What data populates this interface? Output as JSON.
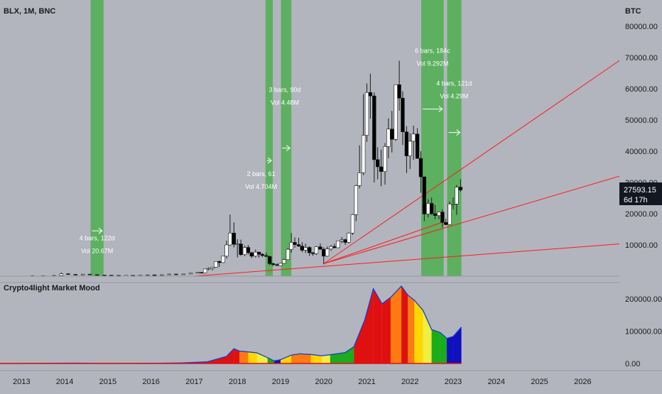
{
  "header": {
    "symbol": "BLX, 1M, BNC"
  },
  "indicator": {
    "title": "Crypto4light Market Mood"
  },
  "chart_data": [
    {
      "type": "candlestick",
      "currency": "BTC",
      "ylim": [
        0,
        80000
      ],
      "y_ticks": [
        "80000.00",
        "70000.00",
        "60000.00",
        "50000.00",
        "40000.00",
        "30000.00",
        "20000.00",
        "10000.00"
      ],
      "y_tick_values": [
        80000,
        70000,
        60000,
        50000,
        40000,
        30000,
        20000,
        10000
      ],
      "x_labels": [
        "2013",
        "2014",
        "2015",
        "2016",
        "2017",
        "2018",
        "2019",
        "2020",
        "2021",
        "2022",
        "2023",
        "2024",
        "2025",
        "2026"
      ],
      "x_start": 2012.5,
      "x_end": 2026.85,
      "price_badge": {
        "price": "27593.15",
        "countdown": "6d 17h",
        "value": 27593.15
      },
      "candles": [
        {
          "t": 2013.0,
          "o": 13,
          "h": 22,
          "l": 12,
          "c": 20
        },
        {
          "t": 2013.25,
          "o": 20,
          "h": 260,
          "l": 18,
          "c": 130
        },
        {
          "t": 2013.5,
          "o": 130,
          "h": 140,
          "l": 65,
          "c": 100
        },
        {
          "t": 2013.75,
          "o": 100,
          "h": 400,
          "l": 95,
          "c": 200
        },
        {
          "t": 2013.92,
          "o": 200,
          "h": 1150,
          "l": 190,
          "c": 750
        },
        {
          "t": 2014.08,
          "o": 750,
          "h": 960,
          "l": 420,
          "c": 570
        },
        {
          "t": 2014.25,
          "o": 570,
          "h": 680,
          "l": 340,
          "c": 450
        },
        {
          "t": 2014.42,
          "o": 450,
          "h": 660,
          "l": 430,
          "c": 640
        },
        {
          "t": 2014.58,
          "o": 640,
          "h": 650,
          "l": 450,
          "c": 480
        },
        {
          "t": 2014.75,
          "o": 480,
          "h": 490,
          "l": 280,
          "c": 340
        },
        {
          "t": 2014.92,
          "o": 340,
          "h": 400,
          "l": 300,
          "c": 320
        },
        {
          "t": 2015.08,
          "o": 320,
          "h": 330,
          "l": 170,
          "c": 250
        },
        {
          "t": 2015.25,
          "o": 250,
          "h": 300,
          "l": 210,
          "c": 235
        },
        {
          "t": 2015.42,
          "o": 235,
          "h": 300,
          "l": 220,
          "c": 260
        },
        {
          "t": 2015.58,
          "o": 260,
          "h": 320,
          "l": 210,
          "c": 230
        },
        {
          "t": 2015.75,
          "o": 230,
          "h": 330,
          "l": 225,
          "c": 310
        },
        {
          "t": 2015.92,
          "o": 310,
          "h": 500,
          "l": 300,
          "c": 430
        },
        {
          "t": 2016.08,
          "o": 430,
          "h": 440,
          "l": 360,
          "c": 420
        },
        {
          "t": 2016.25,
          "o": 420,
          "h": 470,
          "l": 400,
          "c": 450
        },
        {
          "t": 2016.42,
          "o": 450,
          "h": 780,
          "l": 440,
          "c": 670
        },
        {
          "t": 2016.58,
          "o": 670,
          "h": 680,
          "l": 520,
          "c": 610
        },
        {
          "t": 2016.75,
          "o": 610,
          "h": 740,
          "l": 600,
          "c": 700
        },
        {
          "t": 2016.92,
          "o": 700,
          "h": 980,
          "l": 690,
          "c": 960
        },
        {
          "t": 2017.08,
          "o": 960,
          "h": 1290,
          "l": 890,
          "c": 1190
        },
        {
          "t": 2017.17,
          "o": 1190,
          "h": 1350,
          "l": 890,
          "c": 1080
        },
        {
          "t": 2017.25,
          "o": 1080,
          "h": 2000,
          "l": 1050,
          "c": 2300
        },
        {
          "t": 2017.33,
          "o": 2300,
          "h": 2800,
          "l": 1900,
          "c": 2480
        },
        {
          "t": 2017.42,
          "o": 2480,
          "h": 2980,
          "l": 1850,
          "c": 2870
        },
        {
          "t": 2017.5,
          "o": 2870,
          "h": 4800,
          "l": 2700,
          "c": 4700
        },
        {
          "t": 2017.58,
          "o": 4700,
          "h": 4980,
          "l": 2970,
          "c": 4340
        },
        {
          "t": 2017.67,
          "o": 4340,
          "h": 6400,
          "l": 4200,
          "c": 6400
        },
        {
          "t": 2017.75,
          "o": 6400,
          "h": 11400,
          "l": 5600,
          "c": 10000
        },
        {
          "t": 2017.83,
          "o": 10000,
          "h": 19700,
          "l": 9700,
          "c": 13800
        },
        {
          "t": 2017.92,
          "o": 13800,
          "h": 17200,
          "l": 9200,
          "c": 10200
        },
        {
          "t": 2018.0,
          "o": 10200,
          "h": 11800,
          "l": 6000,
          "c": 10300
        },
        {
          "t": 2018.08,
          "o": 10300,
          "h": 11700,
          "l": 6500,
          "c": 6900
        },
        {
          "t": 2018.17,
          "o": 6900,
          "h": 9700,
          "l": 6400,
          "c": 9200
        },
        {
          "t": 2018.25,
          "o": 9200,
          "h": 10000,
          "l": 7000,
          "c": 7500
        },
        {
          "t": 2018.33,
          "o": 7500,
          "h": 7800,
          "l": 5800,
          "c": 6400
        },
        {
          "t": 2018.42,
          "o": 6400,
          "h": 8500,
          "l": 6000,
          "c": 7700
        },
        {
          "t": 2018.5,
          "o": 7700,
          "h": 7800,
          "l": 5900,
          "c": 7000
        },
        {
          "t": 2018.58,
          "o": 7000,
          "h": 7400,
          "l": 6100,
          "c": 6600
        },
        {
          "t": 2018.67,
          "o": 6600,
          "h": 7600,
          "l": 6200,
          "c": 6300
        },
        {
          "t": 2018.75,
          "o": 6300,
          "h": 6600,
          "l": 3500,
          "c": 4000
        },
        {
          "t": 2018.83,
          "o": 4000,
          "h": 4300,
          "l": 3200,
          "c": 3700
        },
        {
          "t": 2018.92,
          "o": 3700,
          "h": 4100,
          "l": 3300,
          "c": 3400
        },
        {
          "t": 2019.0,
          "o": 3400,
          "h": 4200,
          "l": 3400,
          "c": 4100
        },
        {
          "t": 2019.08,
          "o": 4100,
          "h": 5500,
          "l": 4000,
          "c": 5300
        },
        {
          "t": 2019.17,
          "o": 5300,
          "h": 9000,
          "l": 5200,
          "c": 8600
        },
        {
          "t": 2019.25,
          "o": 8600,
          "h": 13800,
          "l": 7500,
          "c": 10800
        },
        {
          "t": 2019.33,
          "o": 10800,
          "h": 12400,
          "l": 9100,
          "c": 10100
        },
        {
          "t": 2019.42,
          "o": 10100,
          "h": 12300,
          "l": 9400,
          "c": 9600
        },
        {
          "t": 2019.5,
          "o": 9600,
          "h": 10900,
          "l": 7700,
          "c": 8300
        },
        {
          "t": 2019.58,
          "o": 8300,
          "h": 10400,
          "l": 7400,
          "c": 9200
        },
        {
          "t": 2019.67,
          "o": 9200,
          "h": 9600,
          "l": 6500,
          "c": 7500
        },
        {
          "t": 2019.75,
          "o": 7500,
          "h": 7700,
          "l": 6500,
          "c": 7200
        },
        {
          "t": 2019.83,
          "o": 7200,
          "h": 9600,
          "l": 6800,
          "c": 9400
        },
        {
          "t": 2019.92,
          "o": 9400,
          "h": 10500,
          "l": 8500,
          "c": 8600
        },
        {
          "t": 2020.0,
          "o": 8600,
          "h": 9200,
          "l": 3800,
          "c": 6400
        },
        {
          "t": 2020.08,
          "o": 6400,
          "h": 9500,
          "l": 6200,
          "c": 8700
        },
        {
          "t": 2020.17,
          "o": 8700,
          "h": 10000,
          "l": 8100,
          "c": 9500
        },
        {
          "t": 2020.25,
          "o": 9500,
          "h": 10400,
          "l": 8900,
          "c": 9100
        },
        {
          "t": 2020.33,
          "o": 9100,
          "h": 11400,
          "l": 9000,
          "c": 11300
        },
        {
          "t": 2020.42,
          "o": 11300,
          "h": 12500,
          "l": 10600,
          "c": 11700
        },
        {
          "t": 2020.5,
          "o": 11700,
          "h": 12000,
          "l": 10000,
          "c": 10800
        },
        {
          "t": 2020.58,
          "o": 10800,
          "h": 14000,
          "l": 10500,
          "c": 13800
        },
        {
          "t": 2020.67,
          "o": 13800,
          "h": 19900,
          "l": 13200,
          "c": 19700
        },
        {
          "t": 2020.75,
          "o": 19700,
          "h": 29300,
          "l": 17600,
          "c": 29000
        },
        {
          "t": 2020.83,
          "o": 29000,
          "h": 41900,
          "l": 28100,
          "c": 33100
        },
        {
          "t": 2020.92,
          "o": 33100,
          "h": 58300,
          "l": 32300,
          "c": 45100
        },
        {
          "t": 2021.0,
          "o": 45100,
          "h": 61700,
          "l": 43000,
          "c": 58800
        },
        {
          "t": 2021.08,
          "o": 58800,
          "h": 64800,
          "l": 50400,
          "c": 57700
        },
        {
          "t": 2021.17,
          "o": 57700,
          "h": 58800,
          "l": 30000,
          "c": 37300
        },
        {
          "t": 2021.25,
          "o": 37300,
          "h": 41300,
          "l": 31000,
          "c": 35000
        },
        {
          "t": 2021.33,
          "o": 35000,
          "h": 40500,
          "l": 28800,
          "c": 33500
        },
        {
          "t": 2021.42,
          "o": 33500,
          "h": 42600,
          "l": 29300,
          "c": 41500
        },
        {
          "t": 2021.5,
          "o": 41500,
          "h": 50500,
          "l": 37700,
          "c": 47100
        },
        {
          "t": 2021.58,
          "o": 47100,
          "h": 52900,
          "l": 39600,
          "c": 43800
        },
        {
          "t": 2021.67,
          "o": 43800,
          "h": 61000,
          "l": 43300,
          "c": 61300
        },
        {
          "t": 2021.75,
          "o": 61300,
          "h": 69000,
          "l": 53000,
          "c": 57000
        },
        {
          "t": 2021.83,
          "o": 57000,
          "h": 59200,
          "l": 42000,
          "c": 46200
        },
        {
          "t": 2021.92,
          "o": 46200,
          "h": 48000,
          "l": 33000,
          "c": 38500
        },
        {
          "t": 2022.0,
          "o": 38500,
          "h": 45800,
          "l": 34300,
          "c": 43200
        },
        {
          "t": 2022.08,
          "o": 43200,
          "h": 48200,
          "l": 37200,
          "c": 45500
        },
        {
          "t": 2022.17,
          "o": 45500,
          "h": 47400,
          "l": 37600,
          "c": 37700
        },
        {
          "t": 2022.25,
          "o": 37700,
          "h": 40000,
          "l": 26700,
          "c": 31800
        },
        {
          "t": 2022.33,
          "o": 31800,
          "h": 31900,
          "l": 17600,
          "c": 19900
        },
        {
          "t": 2022.42,
          "o": 19900,
          "h": 24600,
          "l": 18800,
          "c": 23300
        },
        {
          "t": 2022.5,
          "o": 23300,
          "h": 25200,
          "l": 19600,
          "c": 20000
        },
        {
          "t": 2022.58,
          "o": 20000,
          "h": 22800,
          "l": 18200,
          "c": 19400
        },
        {
          "t": 2022.67,
          "o": 19400,
          "h": 20500,
          "l": 18200,
          "c": 20500
        },
        {
          "t": 2022.75,
          "o": 20500,
          "h": 21400,
          "l": 15600,
          "c": 17200
        },
        {
          "t": 2022.83,
          "o": 17200,
          "h": 18400,
          "l": 16300,
          "c": 16500
        },
        {
          "t": 2022.92,
          "o": 16500,
          "h": 23900,
          "l": 16500,
          "c": 23100
        },
        {
          "t": 2023.0,
          "o": 23100,
          "h": 25200,
          "l": 21400,
          "c": 23100
        },
        {
          "t": 2023.08,
          "o": 23100,
          "h": 29200,
          "l": 19600,
          "c": 28500
        },
        {
          "t": 2023.17,
          "o": 28500,
          "h": 31000,
          "l": 27000,
          "c": 27593
        }
      ],
      "highlight_zones": [
        {
          "x0": 2014.6,
          "x1": 2014.9,
          "label_bars": "4 bars, 122d",
          "label_vol": "Vol 20.67M",
          "label_t": 2014.75,
          "label_y": 11500,
          "arrow_y": 14500
        },
        {
          "x0": 2018.65,
          "x1": 2018.82,
          "label_bars": "2 bars, 61",
          "label_vol": "Vol 4.704M",
          "label_t": 2018.55,
          "label_y": 32000,
          "arrow_y": 37000
        },
        {
          "x0": 2019.01,
          "x1": 2019.25,
          "label_bars": "3 bars, 90d",
          "label_vol": "Vol 4.48M",
          "label_t": 2019.1,
          "label_y": 59000,
          "arrow_y": 41000
        },
        {
          "x0": 2022.26,
          "x1": 2022.78,
          "label_bars": "6 bars, 184c",
          "label_vol": "Vol 9.292M",
          "label_t": 2022.52,
          "label_y": 71500,
          "arrow_y": 53500
        },
        {
          "x0": 2022.86,
          "x1": 2023.19,
          "label_bars": "4 bars, 121d",
          "label_vol": "Vol 4.29M",
          "label_t": 2023.02,
          "label_y": 61000,
          "arrow_y": 46000
        }
      ],
      "trend_lines": [
        {
          "t0": 2017.0,
          "y0": 0,
          "t1": 2026.85,
          "y1": 10300
        },
        {
          "t0": 2020.0,
          "y0": 4000,
          "t1": 2026.85,
          "y1": 32000
        },
        {
          "t0": 2020.0,
          "y0": 4000,
          "t1": 2026.85,
          "y1": 69000
        },
        {
          "t0": 2020.0,
          "y0": 4000,
          "t1": 2022.8,
          "y1": 17500
        }
      ]
    },
    {
      "type": "area",
      "name": "Crypto4light Market Mood",
      "ylim": [
        0,
        250000
      ],
      "y_ticks": [
        "200000.00",
        "100000.00",
        "0.00"
      ],
      "y_tick_values": [
        200000,
        100000,
        0
      ],
      "color_key": {
        "0": "#e01010",
        "1": "#ff7a10",
        "2": "#ffd600",
        "3": "#f0ee40",
        "4": "#1aac1a",
        "5": "#1010c0"
      },
      "points": [
        {
          "t": 2012.5,
          "v": 0,
          "m": 0
        },
        {
          "t": 2014.25,
          "v": 1200,
          "m": 0
        },
        {
          "t": 2014.5,
          "v": 600,
          "m": 1
        },
        {
          "t": 2014.8,
          "v": 300,
          "m": 2
        },
        {
          "t": 2015.1,
          "v": 300,
          "m": 5
        },
        {
          "t": 2015.7,
          "v": 400,
          "m": 3
        },
        {
          "t": 2016.2,
          "v": 700,
          "m": 4
        },
        {
          "t": 2016.7,
          "v": 1500,
          "m": 0
        },
        {
          "t": 2017.3,
          "v": 5000,
          "m": 0
        },
        {
          "t": 2017.75,
          "v": 22000,
          "m": 0
        },
        {
          "t": 2017.92,
          "v": 46000,
          "m": 0
        },
        {
          "t": 2018.05,
          "v": 38000,
          "m": 1
        },
        {
          "t": 2018.25,
          "v": 36000,
          "m": 2
        },
        {
          "t": 2018.45,
          "v": 33000,
          "m": 3
        },
        {
          "t": 2018.7,
          "v": 18000,
          "m": 4
        },
        {
          "t": 2018.85,
          "v": 8000,
          "m": 5
        },
        {
          "t": 2019.0,
          "v": 12000,
          "m": 2
        },
        {
          "t": 2019.25,
          "v": 26000,
          "m": 1
        },
        {
          "t": 2019.45,
          "v": 30000,
          "m": 1
        },
        {
          "t": 2019.7,
          "v": 28000,
          "m": 2
        },
        {
          "t": 2019.95,
          "v": 24000,
          "m": 3
        },
        {
          "t": 2020.15,
          "v": 27000,
          "m": 4
        },
        {
          "t": 2020.5,
          "v": 34000,
          "m": 4
        },
        {
          "t": 2020.7,
          "v": 52000,
          "m": 0
        },
        {
          "t": 2020.95,
          "v": 135000,
          "m": 0
        },
        {
          "t": 2021.15,
          "v": 232000,
          "m": 0
        },
        {
          "t": 2021.35,
          "v": 185000,
          "m": 0
        },
        {
          "t": 2021.55,
          "v": 205000,
          "m": 1
        },
        {
          "t": 2021.8,
          "v": 240000,
          "m": 0
        },
        {
          "t": 2021.95,
          "v": 212000,
          "m": 1
        },
        {
          "t": 2022.1,
          "v": 196000,
          "m": 2
        },
        {
          "t": 2022.3,
          "v": 165000,
          "m": 3
        },
        {
          "t": 2022.5,
          "v": 105000,
          "m": 4
        },
        {
          "t": 2022.7,
          "v": 96000,
          "m": 4
        },
        {
          "t": 2022.85,
          "v": 78000,
          "m": 5
        },
        {
          "t": 2023.0,
          "v": 84000,
          "m": 5
        },
        {
          "t": 2023.19,
          "v": 113000,
          "m": 5
        }
      ]
    }
  ]
}
